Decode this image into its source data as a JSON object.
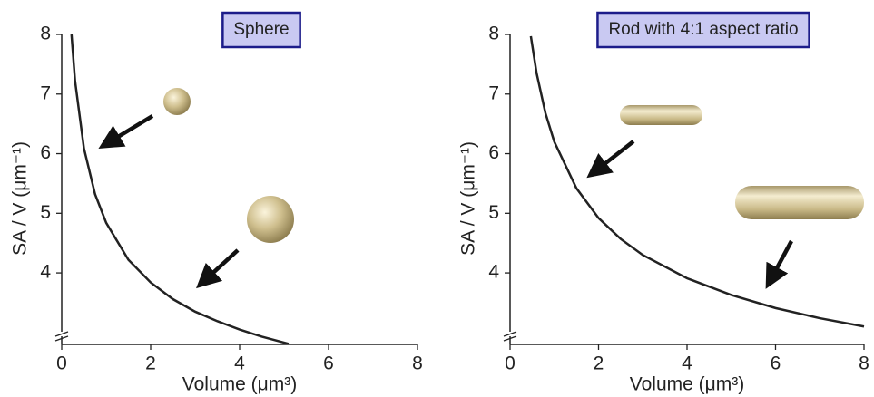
{
  "chart_data": [
    {
      "type": "line",
      "title": "Sphere",
      "x_label": "Volume (μm³)",
      "y_label": "SA / V (μm⁻¹)",
      "x": [
        0.22,
        0.3,
        0.5,
        0.75,
        1,
        1.5,
        2,
        2.5,
        3,
        3.5,
        4,
        4.5,
        5.1
      ],
      "series": [
        {
          "color": "#222222",
          "values": [
            8.0,
            7.22,
            6.09,
            5.32,
            4.84,
            4.22,
            3.84,
            3.56,
            3.35,
            3.19,
            3.05,
            2.93,
            2.81
          ]
        }
      ],
      "xlim": [
        0,
        8
      ],
      "xticks": [
        0,
        2,
        4,
        6,
        8
      ],
      "ylim": [
        2.8,
        8
      ],
      "yticks": [
        4,
        5,
        6,
        7,
        8
      ]
    },
    {
      "type": "line",
      "title": "Rod with 4:1 aspect ratio",
      "x_label": "Volume (μm³)",
      "y_label": "SA / V (μm⁻¹)",
      "x": [
        0.47,
        0.6,
        0.8,
        1,
        1.5,
        2,
        2.5,
        3,
        4,
        5,
        6,
        7,
        8
      ],
      "series": [
        {
          "color": "#222222",
          "values": [
            7.97,
            7.35,
            6.68,
            6.2,
            5.42,
            4.92,
            4.57,
            4.3,
            3.91,
            3.63,
            3.41,
            3.24,
            3.1
          ]
        }
      ],
      "xlim": [
        0,
        8
      ],
      "xticks": [
        0,
        2,
        4,
        6,
        8
      ],
      "ylim": [
        2.8,
        8
      ],
      "yticks": [
        4,
        5,
        6,
        7,
        8
      ]
    }
  ]
}
